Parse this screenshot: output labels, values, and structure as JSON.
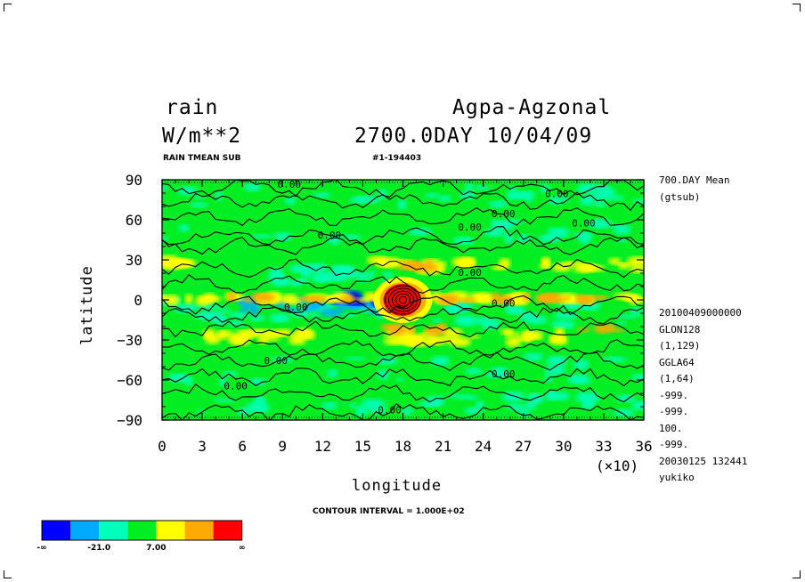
{
  "header": {
    "var_name": "rain",
    "units": "W/m**2",
    "experiment": "Agpa-Agzonal",
    "time": "2700.0DAY 10/04/09",
    "subtitle_left": "RAIN TMEAN SUB",
    "subtitle_mid": "#1-194403"
  },
  "side_info": [
    "700.DAY Mean",
    "(gtsub)",
    "20100409000000",
    "GLON128",
    "(1,129)",
    "GGLA64",
    "(1,64)",
    "-999.",
    "-999.",
    "100.",
    "-999.",
    "20030125 132441",
    "yukiko"
  ],
  "contour_interval": "CONTOUR INTERVAL = 1.000E+02",
  "colorbar": {
    "colors": [
      "#0000ff",
      "#00aaff",
      "#00ffbb",
      "#00ee22",
      "#ffff00",
      "#ffaa00",
      "#ff0000"
    ],
    "labels": [
      "-∞",
      "-21.0",
      "7.00",
      "∞"
    ]
  },
  "chart_data": {
    "type": "heatmap",
    "xlabel": "longitude",
    "ylabel": "latitude",
    "x_ticks": [
      "0",
      "3",
      "6",
      "9",
      "12",
      "15",
      "18",
      "21",
      "24",
      "27",
      "30",
      "33",
      "36"
    ],
    "x_scale_note": "(×10)",
    "y_ticks": [
      "90",
      "60",
      "30",
      "0",
      "-30",
      "-60",
      "-90"
    ],
    "xlim": [
      0,
      36
    ],
    "ylim": [
      -90,
      90
    ],
    "contour_labels": [
      {
        "text": "0.00",
        "x": 9.5,
        "y": 84
      },
      {
        "text": "0.00",
        "x": 29.5,
        "y": 77
      },
      {
        "text": "0.00",
        "x": 25.5,
        "y": 62
      },
      {
        "text": "0.00",
        "x": 31.5,
        "y": 55
      },
      {
        "text": "0.00",
        "x": 23,
        "y": 52
      },
      {
        "text": "0.00",
        "x": 12.5,
        "y": 46
      },
      {
        "text": "0.00",
        "x": 23,
        "y": 18
      },
      {
        "text": "0.00",
        "x": 10,
        "y": -8
      },
      {
        "text": "0.00",
        "x": 25.5,
        "y": -5
      },
      {
        "text": "0.00",
        "x": 8.5,
        "y": -48
      },
      {
        "text": "0.00",
        "x": 25.5,
        "y": -58
      },
      {
        "text": "0.00",
        "x": 5.5,
        "y": -67
      },
      {
        "text": "0.00",
        "x": 17,
        "y": -85
      }
    ],
    "features": [
      {
        "kind": "max",
        "lon": 18,
        "lat": 0
      },
      {
        "kind": "min",
        "lon": 14.5,
        "lat": 0
      }
    ]
  }
}
